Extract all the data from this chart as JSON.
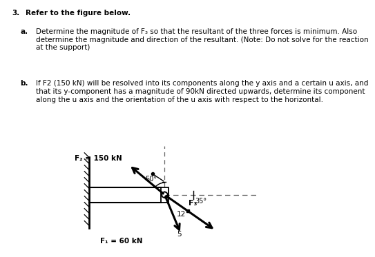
{
  "title_number": "3.",
  "title_text": "Refer to the figure below.",
  "part_a_label": "a.",
  "part_a_text": "Determine the magnitude of F₃ so that the resultant of the three forces is minimum. Also\ndetermine the magnitude and direction of the resultant. (Note: Do not solve for the reaction\nat the support)",
  "part_b_label": "b.",
  "part_b_text": "If F2 (150 kN) will be resolved into its components along the y axis and a certain u axis, and\nthat its y-component has a magnitude of 90kN directed upwards, determine its component\nalong the u axis and the orientation of the u axis with respect to the horizontal.",
  "F2_label": "F₂ = 150 kN",
  "F3_label": "F₃",
  "F1_label": "F₁ = 60 kN",
  "angle_50": "50°",
  "angle_35": "35°",
  "label_12": "12",
  "label_5": "5",
  "bg_color": "#ffffff",
  "text_color": "#000000",
  "line_color": "#000000",
  "dashed_color": "#666666"
}
